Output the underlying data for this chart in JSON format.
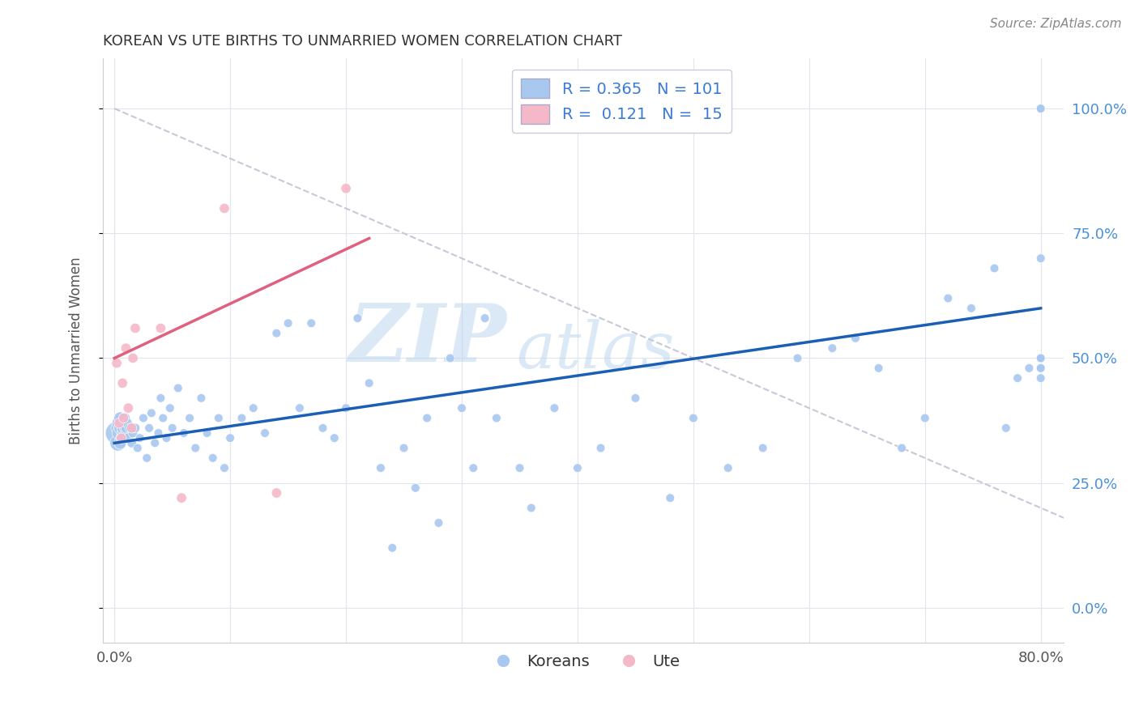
{
  "title": "KOREAN VS UTE BIRTHS TO UNMARRIED WOMEN CORRELATION CHART",
  "source": "Source: ZipAtlas.com",
  "ylabel": "Births to Unmarried Women",
  "ytick_labels": [
    "0.0%",
    "25.0%",
    "50.0%",
    "75.0%",
    "100.0%"
  ],
  "ytick_values": [
    0.0,
    0.25,
    0.5,
    0.75,
    1.0
  ],
  "xtick_labels": [
    "0.0%",
    "",
    "",
    "",
    "",
    "",
    "",
    "",
    "80.0%"
  ],
  "xtick_values": [
    0.0,
    0.1,
    0.2,
    0.3,
    0.4,
    0.5,
    0.6,
    0.7,
    0.8
  ],
  "xlim": [
    -0.01,
    0.82
  ],
  "ylim": [
    -0.07,
    1.1
  ],
  "watermark_zip": "ZIP",
  "watermark_atlas": "atlas",
  "korean_color": "#A8C8F0",
  "ute_color": "#F5B8C8",
  "korean_line_color": "#1A5FB5",
  "ute_line_color": "#E06080",
  "dashed_line_color": "#C8C8D8",
  "background_color": "#FFFFFF",
  "grid_color": "#E0E4EC",
  "korean_R": 0.365,
  "korean_N": 101,
  "ute_R": 0.121,
  "ute_N": 15,
  "korean_line_x0": 0.0,
  "korean_line_y0": 0.33,
  "korean_line_x1": 0.8,
  "korean_line_y1": 0.6,
  "ute_line_x0": 0.0,
  "ute_line_y0": 0.5,
  "ute_line_x1": 0.22,
  "ute_line_y1": 0.74,
  "dash_line_x0": 0.0,
  "dash_line_y0": 1.0,
  "dash_line_x1": 0.82,
  "dash_line_y1": 0.18,
  "korean_x": [
    0.002,
    0.003,
    0.003,
    0.004,
    0.004,
    0.005,
    0.005,
    0.005,
    0.006,
    0.006,
    0.007,
    0.007,
    0.008,
    0.008,
    0.009,
    0.009,
    0.01,
    0.01,
    0.011,
    0.012,
    0.013,
    0.015,
    0.016,
    0.018,
    0.02,
    0.022,
    0.025,
    0.028,
    0.03,
    0.032,
    0.035,
    0.038,
    0.04,
    0.042,
    0.045,
    0.048,
    0.05,
    0.055,
    0.06,
    0.065,
    0.07,
    0.075,
    0.08,
    0.085,
    0.09,
    0.095,
    0.1,
    0.11,
    0.12,
    0.13,
    0.14,
    0.15,
    0.16,
    0.17,
    0.18,
    0.19,
    0.2,
    0.21,
    0.22,
    0.23,
    0.24,
    0.25,
    0.26,
    0.27,
    0.28,
    0.29,
    0.3,
    0.31,
    0.32,
    0.33,
    0.35,
    0.36,
    0.38,
    0.4,
    0.42,
    0.45,
    0.48,
    0.5,
    0.53,
    0.56,
    0.59,
    0.62,
    0.64,
    0.66,
    0.68,
    0.7,
    0.72,
    0.74,
    0.76,
    0.77,
    0.78,
    0.79,
    0.8,
    0.8,
    0.8,
    0.8,
    0.8,
    0.8,
    0.8,
    0.8,
    0.8
  ],
  "korean_y": [
    0.35,
    0.33,
    0.36,
    0.35,
    0.37,
    0.33,
    0.36,
    0.38,
    0.34,
    0.37,
    0.35,
    0.36,
    0.34,
    0.37,
    0.36,
    0.38,
    0.35,
    0.36,
    0.37,
    0.34,
    0.36,
    0.33,
    0.35,
    0.36,
    0.32,
    0.34,
    0.38,
    0.3,
    0.36,
    0.39,
    0.33,
    0.35,
    0.42,
    0.38,
    0.34,
    0.4,
    0.36,
    0.44,
    0.35,
    0.38,
    0.32,
    0.42,
    0.35,
    0.3,
    0.38,
    0.28,
    0.34,
    0.38,
    0.4,
    0.35,
    0.55,
    0.57,
    0.4,
    0.57,
    0.36,
    0.34,
    0.4,
    0.58,
    0.45,
    0.28,
    0.12,
    0.32,
    0.24,
    0.38,
    0.17,
    0.5,
    0.4,
    0.28,
    0.58,
    0.38,
    0.28,
    0.2,
    0.4,
    0.28,
    0.32,
    0.42,
    0.22,
    0.38,
    0.28,
    0.32,
    0.5,
    0.52,
    0.54,
    0.48,
    0.32,
    0.38,
    0.62,
    0.6,
    0.68,
    0.36,
    0.46,
    0.48,
    1.0,
    1.0,
    0.7,
    0.5,
    0.48,
    0.46,
    0.5,
    0.48,
    0.48
  ],
  "korean_sizes": [
    400,
    200,
    150,
    150,
    150,
    120,
    120,
    120,
    100,
    100,
    100,
    100,
    90,
    90,
    90,
    90,
    80,
    80,
    80,
    80,
    70,
    70,
    70,
    70,
    60,
    60,
    60,
    60,
    60,
    60,
    60,
    60,
    60,
    60,
    60,
    60,
    60,
    60,
    60,
    60,
    60,
    60,
    60,
    60,
    60,
    60,
    60,
    60,
    60,
    60,
    60,
    60,
    60,
    60,
    60,
    60,
    60,
    60,
    60,
    60,
    60,
    60,
    60,
    60,
    60,
    60,
    60,
    60,
    60,
    60,
    60,
    60,
    60,
    60,
    60,
    60,
    60,
    60,
    60,
    60,
    60,
    60,
    60,
    60,
    60,
    60,
    60,
    60,
    60,
    60,
    60,
    60,
    60,
    60,
    60,
    60,
    60,
    60,
    60,
    60,
    60
  ],
  "ute_x": [
    0.002,
    0.004,
    0.006,
    0.007,
    0.008,
    0.01,
    0.012,
    0.015,
    0.016,
    0.018,
    0.04,
    0.058,
    0.095,
    0.14,
    0.2
  ],
  "ute_y": [
    0.49,
    0.37,
    0.34,
    0.45,
    0.38,
    0.52,
    0.4,
    0.36,
    0.5,
    0.56,
    0.56,
    0.22,
    0.8,
    0.23,
    0.84
  ],
  "ute_sizes": [
    80,
    80,
    80,
    80,
    80,
    80,
    80,
    80,
    80,
    80,
    80,
    80,
    80,
    80,
    80
  ]
}
